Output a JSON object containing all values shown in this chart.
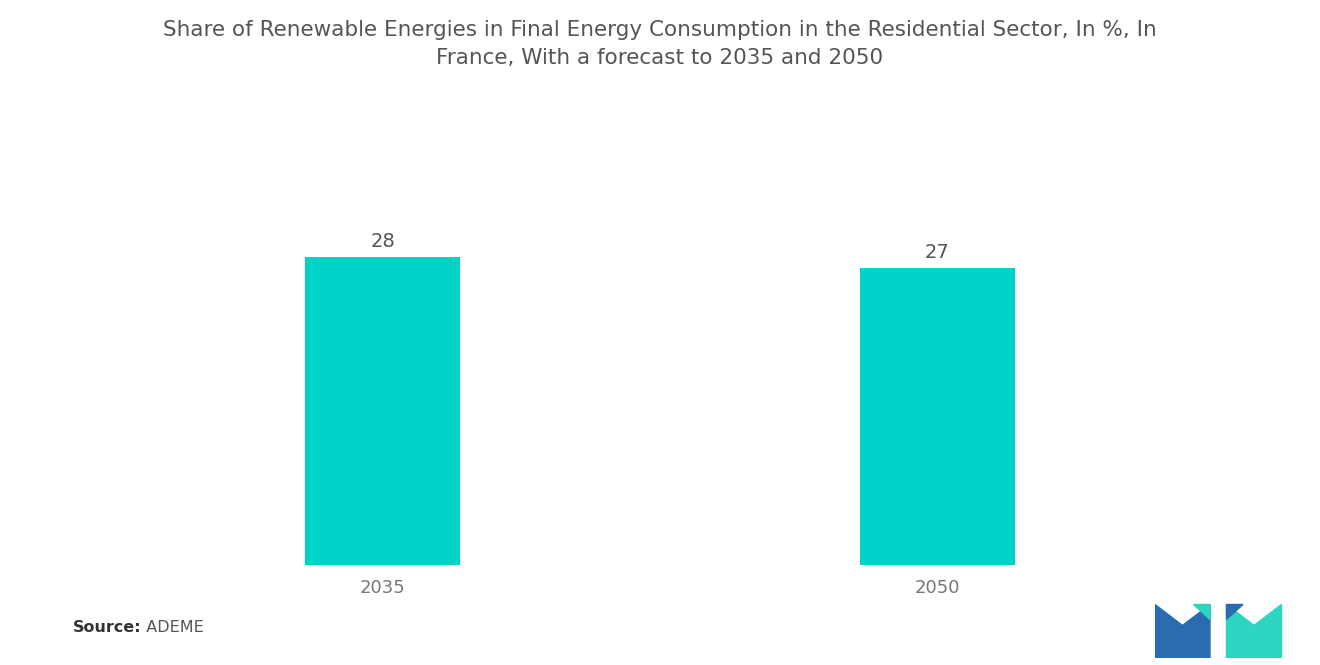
{
  "categories": [
    "2035",
    "2050"
  ],
  "values": [
    28,
    27
  ],
  "bar_color": "#00D4C8",
  "title_line1": "Share of Renewable Energies in Final Energy Consumption in the Residential Sector, In %, In",
  "title_line2": "France, With a forecast to 2035 and 2050",
  "title_fontsize": 15.5,
  "title_color": "#555555",
  "value_label_fontsize": 14,
  "value_label_color": "#555555",
  "xlabel_fontsize": 13,
  "xlabel_color": "#777777",
  "source_bold": "Source:",
  "source_normal": "  ADEME",
  "source_fontsize": 11.5,
  "background_color": "#ffffff",
  "ylim": [
    0,
    35
  ],
  "bar_width": 0.28,
  "x_positions": [
    1,
    2
  ],
  "xlim": [
    0.5,
    2.5
  ],
  "logo_blue": "#2B6CB0",
  "logo_teal": "#2DD4BF"
}
